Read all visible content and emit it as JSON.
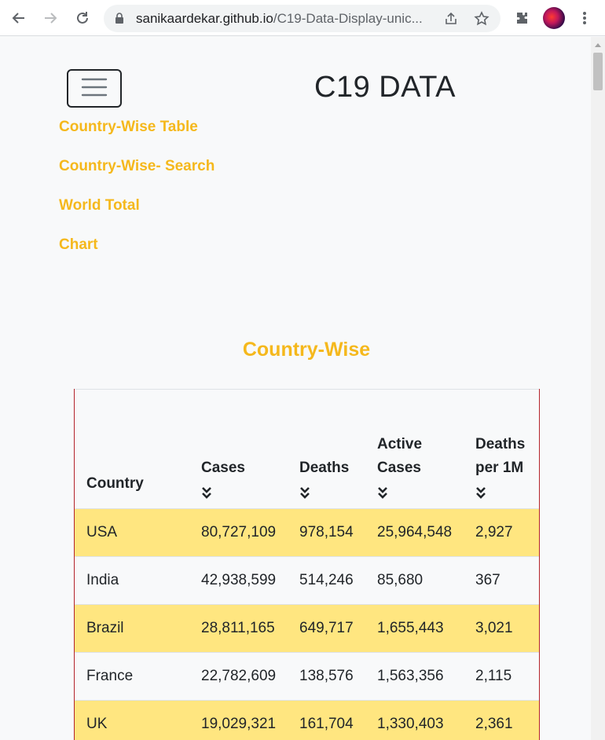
{
  "browser": {
    "url_domain": "sanikaardekar.github.io",
    "url_path": "/C19-Data-Display-unic..."
  },
  "navbar": {
    "brand": "C19 DATA",
    "links": [
      {
        "label": "Country-Wise Table"
      },
      {
        "label": "Country-Wise- Search"
      },
      {
        "label": "World Total"
      },
      {
        "label": "Chart"
      }
    ]
  },
  "section": {
    "title": "Country-Wise"
  },
  "table": {
    "headers": [
      {
        "label": "Country",
        "sortable": false
      },
      {
        "label": "Cases",
        "sortable": true
      },
      {
        "label": "Deaths",
        "sortable": true
      },
      {
        "label": "Active Cases",
        "sortable": true
      },
      {
        "label": "Deaths per 1M",
        "sortable": true
      }
    ],
    "rows": [
      {
        "country": "USA",
        "cases": "80,727,109",
        "deaths": "978,154",
        "active": "25,964,548",
        "per1m": "2,927"
      },
      {
        "country": "India",
        "cases": "42,938,599",
        "deaths": "514,246",
        "active": "85,680",
        "per1m": "367"
      },
      {
        "country": "Brazil",
        "cases": "28,811,165",
        "deaths": "649,717",
        "active": "1,655,443",
        "per1m": "3,021"
      },
      {
        "country": "France",
        "cases": "22,782,609",
        "deaths": "138,576",
        "active": "1,563,356",
        "per1m": "2,115"
      },
      {
        "country": "UK",
        "cases": "19,029,321",
        "deaths": "161,704",
        "active": "1,330,403",
        "per1m": "2,361"
      }
    ]
  },
  "colors": {
    "accent": "#f5b81c",
    "row_highlight": "#ffe680",
    "table_border": "#b4242b"
  }
}
